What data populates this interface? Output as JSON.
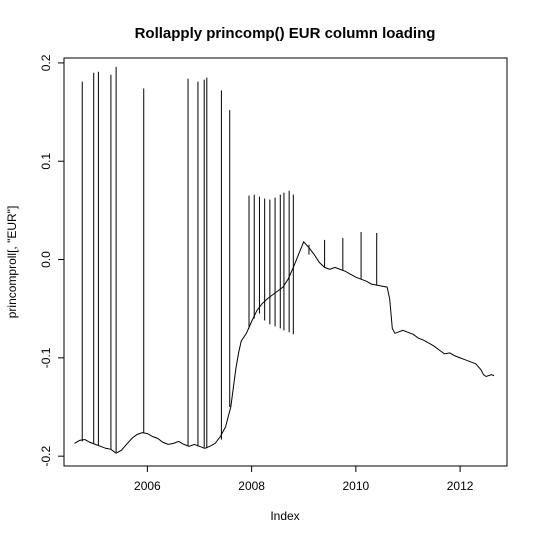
{
  "chart_data": {
    "type": "line",
    "title": "Rollapply princomp() EUR column loading",
    "xlabel": "Index",
    "ylabel": "princomproll[, \"EUR\"]",
    "xlim": [
      2004.4,
      2012.9
    ],
    "ylim": [
      -0.21,
      0.205
    ],
    "x_ticks": [
      2006,
      2008,
      2010,
      2012
    ],
    "y_ticks": [
      -0.2,
      -0.1,
      0.0,
      0.1,
      0.2
    ],
    "x_tick_labels": [
      "2006",
      "2008",
      "2010",
      "2012"
    ],
    "y_tick_labels": [
      "-0.2",
      "-0.1",
      "0.0",
      "0.1",
      "0.2"
    ],
    "grid": false,
    "legend": "none",
    "line_color": "#000000",
    "series": [
      {
        "points": [
          [
            2004.6,
            -0.187
          ],
          [
            2004.7,
            -0.184
          ],
          [
            2004.8,
            -0.183
          ],
          [
            2004.9,
            -0.186
          ],
          [
            2005.0,
            -0.188
          ],
          [
            2005.1,
            -0.19
          ],
          [
            2005.2,
            -0.192
          ],
          [
            2005.3,
            -0.193
          ],
          [
            2005.4,
            -0.197
          ],
          [
            2005.5,
            -0.194
          ],
          [
            2005.6,
            -0.188
          ],
          [
            2005.7,
            -0.182
          ],
          [
            2005.8,
            -0.178
          ],
          [
            2005.9,
            -0.176
          ],
          [
            2006.0,
            -0.177
          ],
          [
            2006.1,
            -0.18
          ],
          [
            2006.2,
            -0.182
          ],
          [
            2006.3,
            -0.186
          ],
          [
            2006.4,
            -0.188
          ],
          [
            2006.5,
            -0.187
          ],
          [
            2006.6,
            -0.185
          ],
          [
            2006.7,
            -0.188
          ],
          [
            2006.8,
            -0.19
          ],
          [
            2006.9,
            -0.188
          ],
          [
            2007.0,
            -0.19
          ],
          [
            2007.1,
            -0.192
          ],
          [
            2007.2,
            -0.19
          ],
          [
            2007.3,
            -0.187
          ],
          [
            2007.4,
            -0.18
          ],
          [
            2007.5,
            -0.17
          ],
          [
            2007.55,
            -0.16
          ],
          [
            2007.6,
            -0.15
          ],
          [
            2007.65,
            -0.13
          ],
          [
            2007.7,
            -0.11
          ],
          [
            2007.75,
            -0.095
          ],
          [
            2007.8,
            -0.083
          ],
          [
            2007.9,
            -0.075
          ],
          [
            2008.0,
            -0.063
          ],
          [
            2008.1,
            -0.052
          ],
          [
            2008.2,
            -0.045
          ],
          [
            2008.3,
            -0.04
          ],
          [
            2008.4,
            -0.036
          ],
          [
            2008.5,
            -0.032
          ],
          [
            2008.6,
            -0.028
          ],
          [
            2008.7,
            -0.02
          ],
          [
            2008.8,
            -0.008
          ],
          [
            2008.9,
            0.005
          ],
          [
            2009.0,
            0.018
          ],
          [
            2009.1,
            0.012
          ],
          [
            2009.2,
            0.005
          ],
          [
            2009.3,
            -0.003
          ],
          [
            2009.4,
            -0.008
          ],
          [
            2009.5,
            -0.01
          ],
          [
            2009.6,
            -0.008
          ],
          [
            2009.7,
            -0.01
          ],
          [
            2009.8,
            -0.012
          ],
          [
            2009.9,
            -0.015
          ],
          [
            2010.0,
            -0.018
          ],
          [
            2010.1,
            -0.02
          ],
          [
            2010.2,
            -0.022
          ],
          [
            2010.3,
            -0.025
          ],
          [
            2010.4,
            -0.026
          ],
          [
            2010.5,
            -0.027
          ],
          [
            2010.6,
            -0.028
          ],
          [
            2010.65,
            -0.04
          ],
          [
            2010.7,
            -0.07
          ],
          [
            2010.75,
            -0.075
          ],
          [
            2010.8,
            -0.074
          ],
          [
            2010.9,
            -0.072
          ],
          [
            2011.0,
            -0.074
          ],
          [
            2011.1,
            -0.076
          ],
          [
            2011.2,
            -0.08
          ],
          [
            2011.3,
            -0.082
          ],
          [
            2011.4,
            -0.085
          ],
          [
            2011.5,
            -0.088
          ],
          [
            2011.6,
            -0.092
          ],
          [
            2011.7,
            -0.096
          ],
          [
            2011.8,
            -0.095
          ],
          [
            2011.9,
            -0.098
          ],
          [
            2012.0,
            -0.1
          ],
          [
            2012.1,
            -0.102
          ],
          [
            2012.2,
            -0.104
          ],
          [
            2012.3,
            -0.106
          ],
          [
            2012.4,
            -0.112
          ],
          [
            2012.45,
            -0.117
          ],
          [
            2012.5,
            -0.119
          ],
          [
            2012.6,
            -0.117
          ],
          [
            2012.65,
            -0.118
          ]
        ]
      }
    ],
    "spikes": [
      {
        "x": 2004.75,
        "low": -0.185,
        "high": 0.181
      },
      {
        "x": 2004.97,
        "low": -0.187,
        "high": 0.19
      },
      {
        "x": 2005.06,
        "low": -0.189,
        "high": 0.191
      },
      {
        "x": 2005.3,
        "low": -0.193,
        "high": 0.188
      },
      {
        "x": 2005.4,
        "low": -0.196,
        "high": 0.196
      },
      {
        "x": 2005.93,
        "low": -0.176,
        "high": 0.174
      },
      {
        "x": 2006.78,
        "low": -0.189,
        "high": 0.184
      },
      {
        "x": 2006.97,
        "low": -0.19,
        "high": 0.181
      },
      {
        "x": 2007.09,
        "low": -0.191,
        "high": 0.183
      },
      {
        "x": 2007.14,
        "low": -0.192,
        "high": 0.185
      },
      {
        "x": 2007.42,
        "low": -0.183,
        "high": 0.172
      },
      {
        "x": 2007.58,
        "low": -0.15,
        "high": 0.152
      },
      {
        "x": 2007.95,
        "low": -0.07,
        "high": 0.065
      },
      {
        "x": 2008.05,
        "low": -0.06,
        "high": 0.066
      },
      {
        "x": 2008.15,
        "low": -0.055,
        "high": 0.064
      },
      {
        "x": 2008.25,
        "low": -0.062,
        "high": 0.062
      },
      {
        "x": 2008.35,
        "low": -0.066,
        "high": 0.061
      },
      {
        "x": 2008.45,
        "low": -0.068,
        "high": 0.063
      },
      {
        "x": 2008.55,
        "low": -0.07,
        "high": 0.066
      },
      {
        "x": 2008.62,
        "low": -0.072,
        "high": 0.068
      },
      {
        "x": 2008.72,
        "low": -0.074,
        "high": 0.07
      },
      {
        "x": 2008.8,
        "low": -0.076,
        "high": 0.066
      },
      {
        "x": 2009.1,
        "low": 0.005,
        "high": 0.015
      },
      {
        "x": 2009.4,
        "low": -0.008,
        "high": 0.02
      },
      {
        "x": 2009.75,
        "low": -0.011,
        "high": 0.022
      },
      {
        "x": 2010.1,
        "low": -0.02,
        "high": 0.028
      },
      {
        "x": 2010.4,
        "low": -0.026,
        "high": 0.027
      }
    ]
  }
}
